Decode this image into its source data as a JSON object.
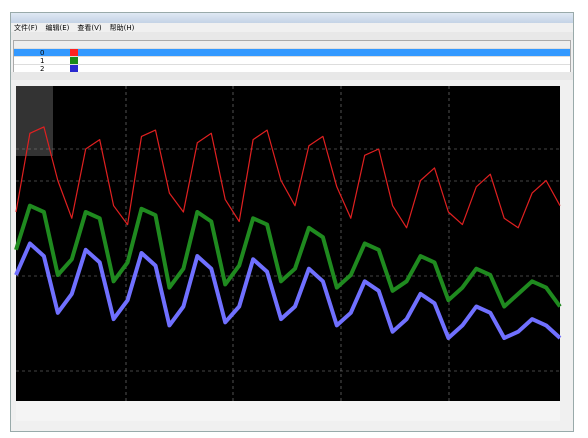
{
  "window": {
    "menu": [
      "文件(F)",
      "编辑(E)",
      "查看(V)",
      "帮助(H)"
    ]
  },
  "table": {
    "rows": [
      {
        "index": "0",
        "color": "#ff2020",
        "selected": true
      },
      {
        "index": "1",
        "color": "#1a8a1a",
        "selected": false
      },
      {
        "index": "2",
        "color": "#2a2ad0",
        "selected": false
      }
    ]
  },
  "trend": {
    "ylim": [
      0,
      100
    ],
    "background": "#000000",
    "grid": true,
    "series": [
      {
        "color": "#e02020",
        "values": [
          60,
          85,
          87,
          70,
          58,
          80,
          83,
          62,
          56,
          84,
          86,
          66,
          60,
          82,
          85,
          64,
          57,
          83,
          86,
          70,
          62,
          81,
          84,
          68,
          58,
          78,
          80,
          62,
          55,
          70,
          74,
          60,
          56,
          68,
          72,
          58,
          55,
          66,
          70,
          62
        ]
      },
      {
        "color": "#1f8a1f",
        "values": [
          48,
          62,
          60,
          40,
          45,
          60,
          58,
          38,
          44,
          61,
          59,
          36,
          42,
          60,
          57,
          37,
          43,
          58,
          56,
          38,
          42,
          55,
          52,
          36,
          40,
          50,
          48,
          35,
          38,
          46,
          44,
          32,
          36,
          42,
          40,
          30,
          34,
          38,
          36,
          30
        ]
      },
      {
        "color": "#7070ff",
        "values": [
          40,
          50,
          46,
          28,
          34,
          48,
          44,
          26,
          32,
          47,
          43,
          24,
          30,
          46,
          42,
          25,
          30,
          45,
          41,
          26,
          30,
          42,
          38,
          24,
          28,
          38,
          35,
          22,
          26,
          34,
          31,
          20,
          24,
          30,
          28,
          20,
          22,
          26,
          24,
          20
        ]
      }
    ]
  }
}
